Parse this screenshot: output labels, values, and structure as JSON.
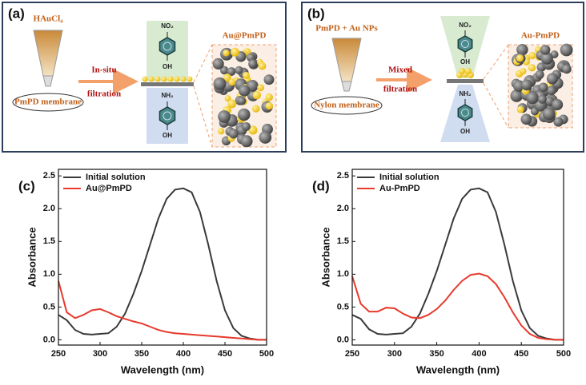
{
  "panels": {
    "a": {
      "label": "(a)",
      "reagent": "HAuCl₄",
      "membrane": "PmPD membrane",
      "process": [
        "In-situ",
        "filtration"
      ],
      "product": "Au@PmPD",
      "top_group": "NO₂",
      "top_oh": "OH",
      "bottom_group": "NH₂",
      "bottom_oh": "OH"
    },
    "b": {
      "label": "(b)",
      "reagent": "PmPD + Au NPs",
      "membrane": "Nylon membrane",
      "process": [
        "Mixed",
        "filtration"
      ],
      "product": "Au-PmPD",
      "top_group": "NO₂",
      "top_oh": "OH",
      "bottom_group": "NH₂",
      "bottom_oh": "OH"
    }
  },
  "chart_data": [
    {
      "type": "line",
      "panel_label": "(c)",
      "x_label": "Wavelength (nm)",
      "y_label": "Absorbance",
      "x": [
        250,
        260,
        270,
        280,
        290,
        300,
        310,
        320,
        330,
        340,
        350,
        360,
        370,
        380,
        390,
        400,
        410,
        420,
        430,
        440,
        450,
        460,
        470,
        480,
        490,
        500
      ],
      "series": [
        {
          "name": "Initial solution",
          "color": "#3a3a3a",
          "values": [
            0.38,
            0.3,
            0.15,
            0.09,
            0.08,
            0.09,
            0.1,
            0.2,
            0.4,
            0.7,
            1.05,
            1.45,
            1.85,
            2.15,
            2.29,
            2.31,
            2.25,
            1.95,
            1.45,
            0.9,
            0.45,
            0.18,
            0.06,
            0.02,
            0.0,
            0.0
          ]
        },
        {
          "name": "Au@PmPD",
          "color": "#e8392c",
          "values": [
            0.9,
            0.42,
            0.33,
            0.38,
            0.45,
            0.47,
            0.42,
            0.36,
            0.32,
            0.28,
            0.25,
            0.2,
            0.15,
            0.12,
            0.1,
            0.09,
            0.08,
            0.07,
            0.06,
            0.05,
            0.04,
            0.03,
            0.02,
            0.01,
            0.0,
            0.0
          ]
        }
      ],
      "xlim": [
        250,
        500
      ],
      "xticks": [
        250,
        300,
        350,
        400,
        450,
        500
      ],
      "ylim": [
        -0.08,
        2.6
      ],
      "yticks": [
        {
          "value": 0,
          "label": "0.0"
        },
        0.5,
        {
          "value": 1,
          "label": "1.0"
        },
        1.5,
        {
          "value": 2,
          "label": "2.0"
        },
        2.5
      ],
      "legend": "upper left"
    },
    {
      "type": "line",
      "panel_label": "(d)",
      "x_label": "Wavelength (nm)",
      "y_label": "Absorbance",
      "x": [
        250,
        260,
        270,
        280,
        290,
        300,
        310,
        320,
        330,
        340,
        350,
        360,
        370,
        380,
        390,
        400,
        410,
        420,
        430,
        440,
        450,
        460,
        470,
        480,
        490,
        500
      ],
      "series": [
        {
          "name": "Initial solution",
          "color": "#3a3a3a",
          "values": [
            0.38,
            0.32,
            0.16,
            0.09,
            0.08,
            0.09,
            0.1,
            0.2,
            0.4,
            0.7,
            1.05,
            1.45,
            1.85,
            2.15,
            2.29,
            2.31,
            2.25,
            1.95,
            1.45,
            0.9,
            0.45,
            0.18,
            0.06,
            0.02,
            0.0,
            0.0
          ]
        },
        {
          "name": "Au-PmPD",
          "color": "#e8392c",
          "values": [
            0.97,
            0.55,
            0.43,
            0.43,
            0.49,
            0.48,
            0.4,
            0.34,
            0.33,
            0.38,
            0.47,
            0.6,
            0.76,
            0.9,
            0.99,
            1.01,
            0.97,
            0.85,
            0.65,
            0.42,
            0.22,
            0.09,
            0.03,
            0.01,
            0.0,
            0.0
          ]
        }
      ],
      "xlim": [
        250,
        500
      ],
      "xticks": [
        250,
        300,
        350,
        400,
        450,
        500
      ],
      "ylim": [
        -0.08,
        2.6
      ],
      "yticks": [
        {
          "value": 0,
          "label": "0.0"
        },
        0.5,
        {
          "value": 1,
          "label": "1.0"
        },
        1.5,
        {
          "value": 2,
          "label": "2.0"
        },
        2.5
      ],
      "legend": "upper left"
    }
  ]
}
